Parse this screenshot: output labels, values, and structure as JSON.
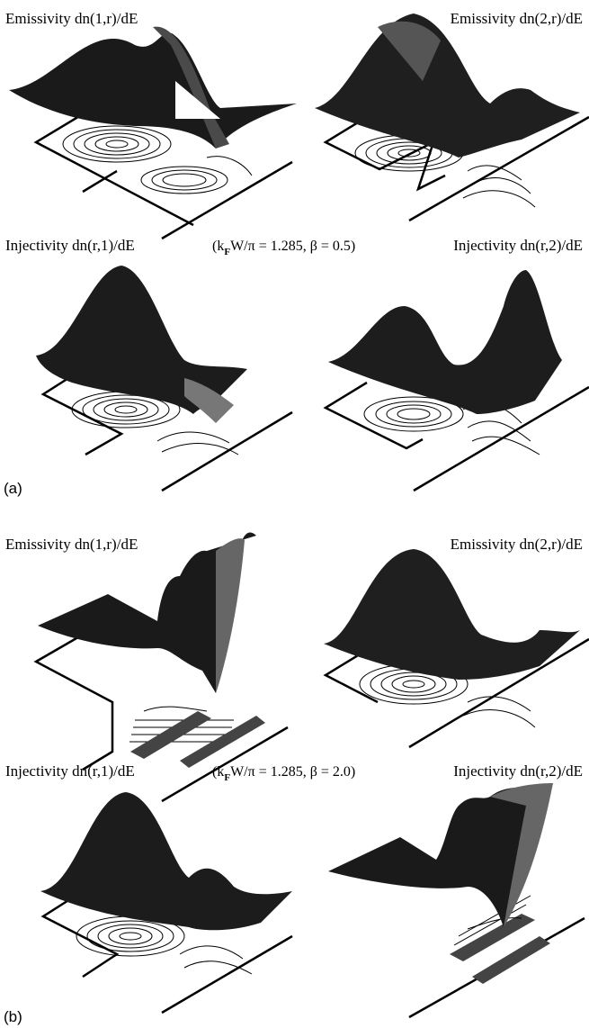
{
  "panel_a": {
    "tag": "(a)",
    "condition": {
      "prefix": "(k",
      "subscript": "F",
      "suffix": "W/π = 1.285, β = 0.5)"
    },
    "plots": [
      {
        "label": "Emissivity dn(1,r)/dE"
      },
      {
        "label": "Emissivity dn(2,r)/dE"
      },
      {
        "label": "Injectivity dn(r,1)/dE"
      },
      {
        "label": "Injectivity dn(r,2)/dE"
      }
    ]
  },
  "panel_b": {
    "tag": "(b)",
    "condition": {
      "prefix": "(k",
      "subscript": "F",
      "suffix": "W/π = 1.285, β = 2.0)"
    },
    "plots": [
      {
        "label": "Emissivity dn(1,r)/dE"
      },
      {
        "label": "Emissivity dn(2,r)/dE"
      },
      {
        "label": "Injectivity dn(r,1)/dE"
      },
      {
        "label": "Injectivity dn(r,2)/dE"
      }
    ]
  }
}
